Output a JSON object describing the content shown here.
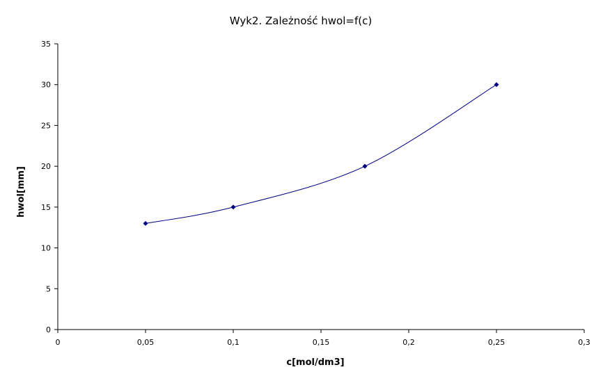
{
  "chart_data": {
    "type": "scatter",
    "title": "Wyk2. Zależność hwol=f(c)",
    "xlabel": "c[mol/dm3]",
    "ylabel": "hwol[mm]",
    "xlim": [
      0,
      0.3
    ],
    "ylim": [
      0,
      35
    ],
    "x_ticks": [
      0,
      0.05,
      0.1,
      0.15,
      0.2,
      0.25,
      0.3
    ],
    "x_tick_labels": [
      "0",
      "0,05",
      "0,1",
      "0,15",
      "0,2",
      "0,25",
      "0,3"
    ],
    "y_ticks": [
      0,
      5,
      10,
      15,
      20,
      25,
      30,
      35
    ],
    "y_tick_labels": [
      "0",
      "5",
      "10",
      "15",
      "20",
      "25",
      "30",
      "35"
    ],
    "grid": false,
    "legend": "none",
    "smooth_line": true,
    "series": [
      {
        "x": [
          0.05,
          0.1,
          0.175,
          0.25
        ],
        "y": [
          13,
          15,
          20,
          30
        ],
        "color": "#000080"
      }
    ]
  }
}
